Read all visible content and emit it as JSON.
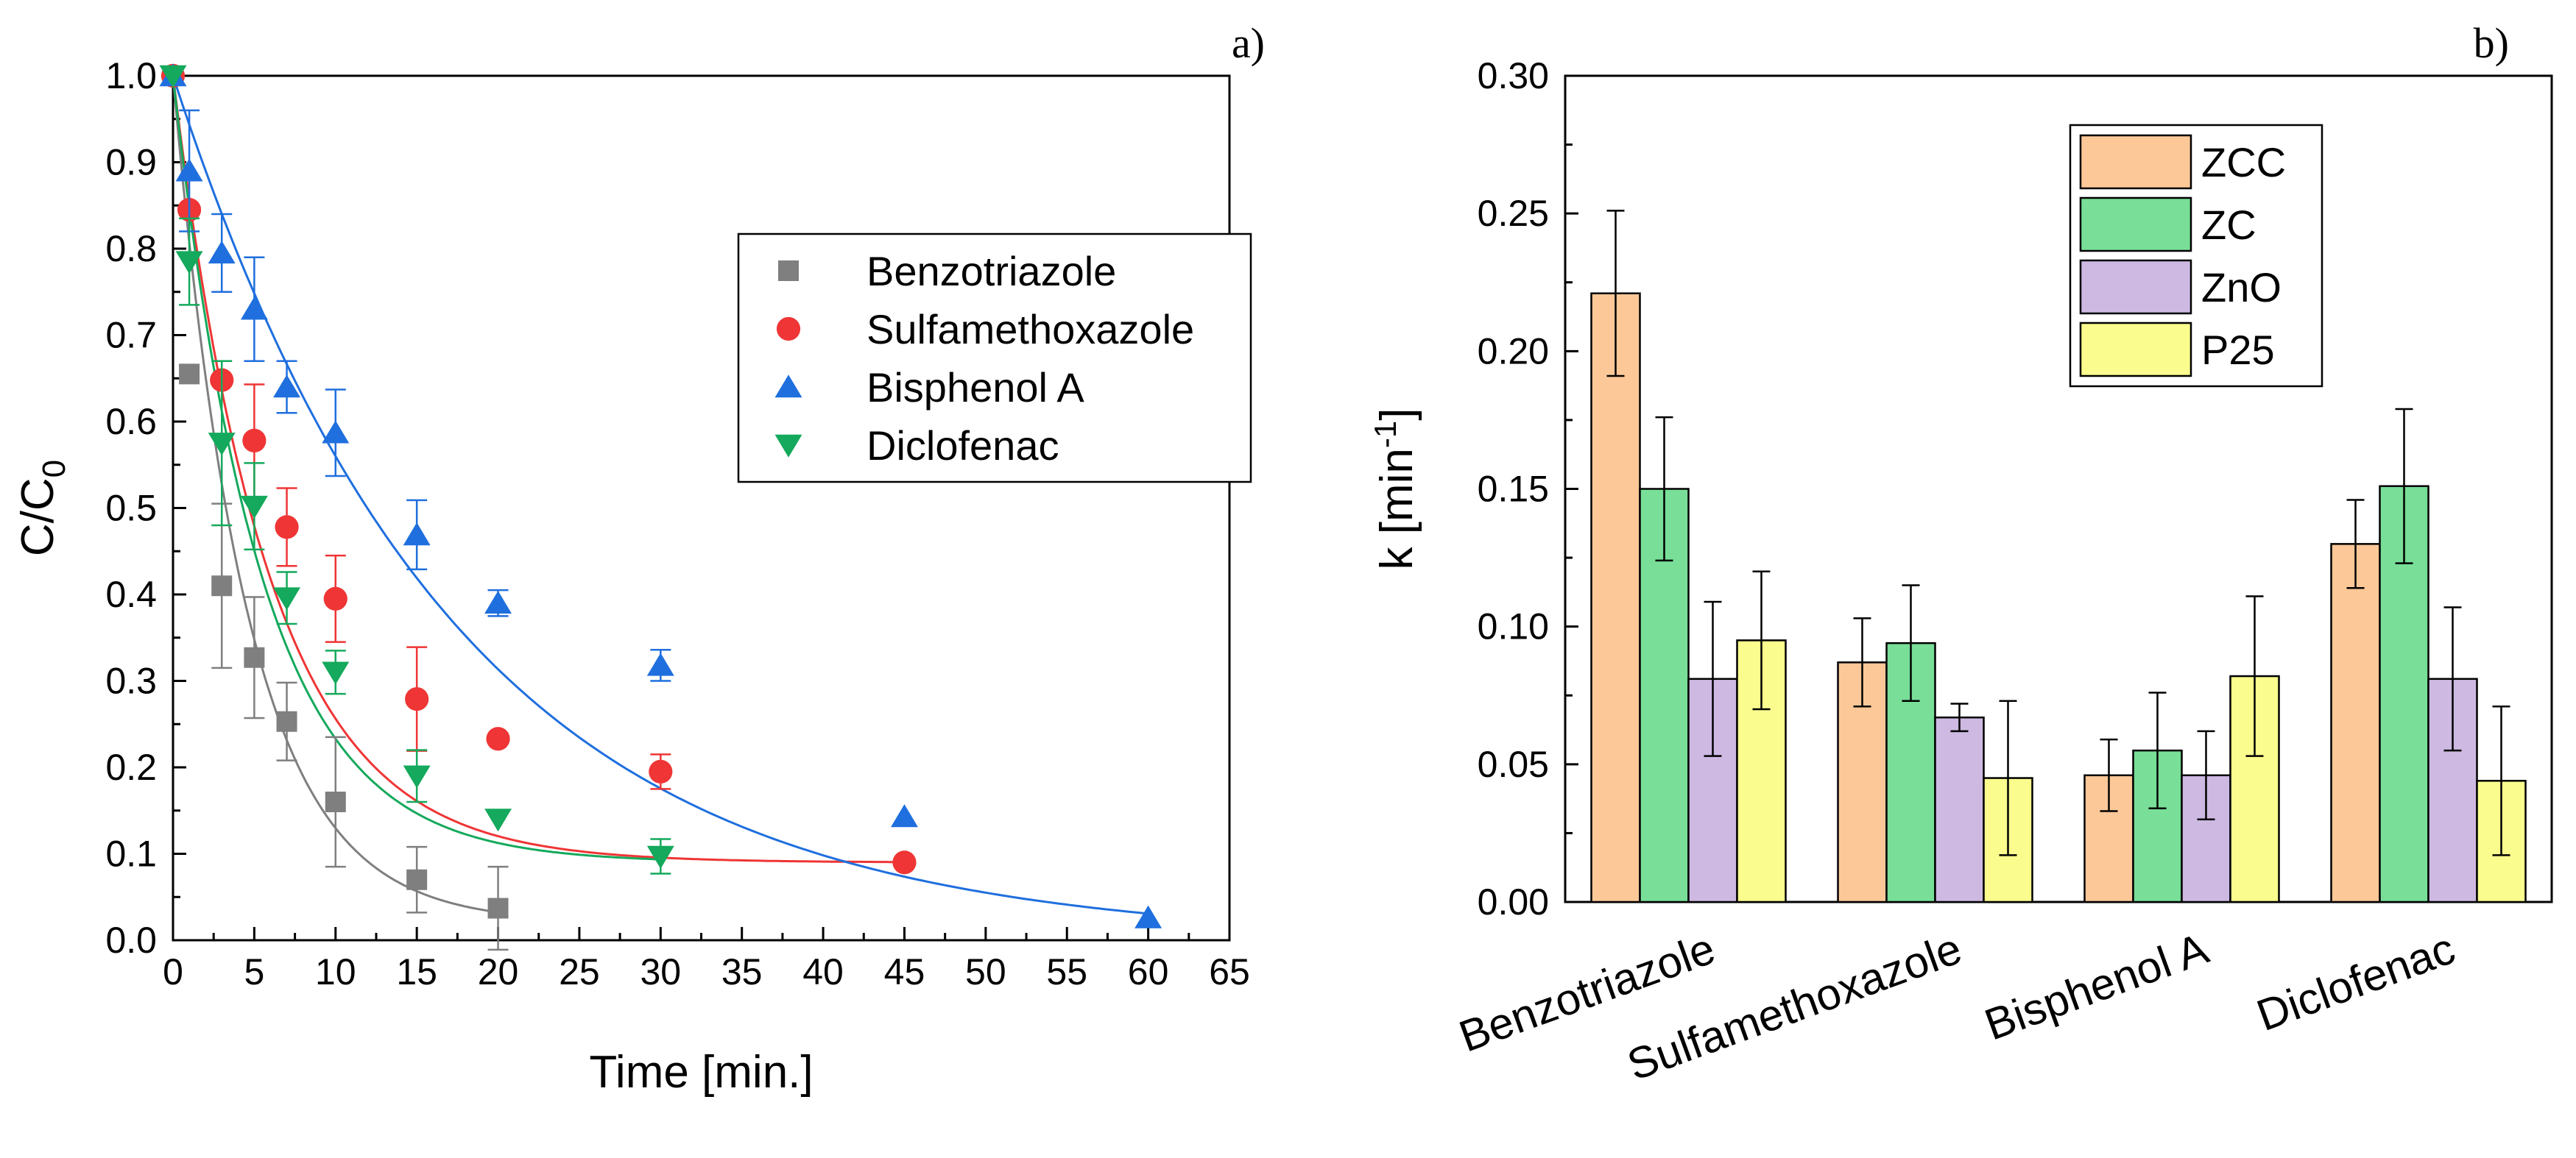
{
  "chart_data": [
    {
      "panel": "a)",
      "type": "scatter",
      "xlabel": "Time [min.]",
      "ylabel": "C/C",
      "ylabel_sub": "0",
      "xlim": [
        0,
        65
      ],
      "ylim": [
        0,
        1.0
      ],
      "xticks": [
        "0",
        "5",
        "10",
        "15",
        "20",
        "25",
        "30",
        "35",
        "40",
        "45",
        "50",
        "55",
        "60",
        "65"
      ],
      "yticks": [
        "0.0",
        "0.1",
        "0.2",
        "0.3",
        "0.4",
        "0.5",
        "0.6",
        "0.7",
        "0.8",
        "0.9",
        "1.0"
      ],
      "legend_position": "top-right",
      "series": [
        {
          "name": "Benzotriazole",
          "color": "#7f7f7f",
          "marker": "square",
          "x": [
            0,
            1,
            3,
            5,
            7,
            10,
            15,
            20
          ],
          "y": [
            1.0,
            0.655,
            0.41,
            0.327,
            0.253,
            0.16,
            0.07,
            0.037
          ],
          "err": [
            0.0,
            0.01,
            0.095,
            0.07,
            0.045,
            0.075,
            0.038,
            0.048
          ],
          "fit": {
            "plateau": 0.02,
            "amplitude": 0.98,
            "k": 0.219
          }
        },
        {
          "name": "Sulfamethoxazole",
          "color": "#ef3535",
          "marker": "circle",
          "x": [
            0,
            1,
            3,
            5,
            7,
            10,
            15,
            20,
            30,
            45
          ],
          "y": [
            1.0,
            0.845,
            0.648,
            0.578,
            0.478,
            0.395,
            0.279,
            0.233,
            0.195,
            0.09
          ],
          "err": [
            0.0,
            0.0,
            0.0,
            0.065,
            0.045,
            0.05,
            0.06,
            0.0,
            0.02,
            0.0
          ],
          "fit": {
            "plateau": 0.09,
            "amplitude": 0.91,
            "k": 0.17
          }
        },
        {
          "name": "Bisphenol A",
          "color": "#1f6fde",
          "marker": "triangle-up",
          "x": [
            0,
            1,
            3,
            5,
            7,
            10,
            15,
            20,
            30,
            45,
            60
          ],
          "y": [
            1.0,
            0.89,
            0.795,
            0.73,
            0.64,
            0.587,
            0.469,
            0.39,
            0.318,
            0.143,
            0.026
          ],
          "err": [
            0.0,
            0.07,
            0.045,
            0.06,
            0.03,
            0.05,
            0.04,
            0.015,
            0.018,
            0.0,
            0.0
          ],
          "fit": {
            "plateau": 0.0,
            "amplitude": 1.0,
            "k": 0.058
          }
        },
        {
          "name": "Diclofenac",
          "color": "#14a95c",
          "marker": "triangle-down",
          "x": [
            0,
            1,
            3,
            5,
            7,
            10,
            15,
            20,
            30
          ],
          "y": [
            1.0,
            0.785,
            0.575,
            0.502,
            0.396,
            0.31,
            0.19,
            0.14,
            0.097
          ],
          "err": [
            0.0,
            0.05,
            0.095,
            0.05,
            0.03,
            0.025,
            0.03,
            0.0,
            0.02
          ],
          "fit": {
            "plateau": 0.09,
            "amplitude": 0.91,
            "k": 0.185
          }
        }
      ]
    },
    {
      "panel": "b)",
      "type": "bar",
      "ylabel": "k [min",
      "ylabel_sup": "-1",
      "ylabel_end": "]",
      "ylim": [
        0,
        0.3
      ],
      "yticks": [
        "0.00",
        "0.05",
        "0.10",
        "0.15",
        "0.20",
        "0.25",
        "0.30"
      ],
      "categories": [
        "Benzotriazole",
        "Sulfamethoxazole",
        "Bisphenol A",
        "Diclofenac"
      ],
      "legend_position": "top-right",
      "series": [
        {
          "name": "ZCC",
          "color": "#fcc898",
          "values": [
            0.221,
            0.087,
            0.046,
            0.13
          ],
          "err": [
            0.03,
            0.016,
            0.013,
            0.016
          ]
        },
        {
          "name": "ZC",
          "color": "#78de98",
          "values": [
            0.15,
            0.094,
            0.055,
            0.151
          ],
          "err": [
            0.026,
            0.021,
            0.021,
            0.028
          ]
        },
        {
          "name": "ZnO",
          "color": "#cdb9e2",
          "values": [
            0.081,
            0.067,
            0.046,
            0.081
          ],
          "err": [
            0.028,
            0.005,
            0.016,
            0.026
          ]
        },
        {
          "name": "P25",
          "color": "#fafc8e",
          "values": [
            0.095,
            0.045,
            0.082,
            0.044
          ],
          "err": [
            0.025,
            0.028,
            0.029,
            0.027
          ]
        }
      ]
    }
  ]
}
